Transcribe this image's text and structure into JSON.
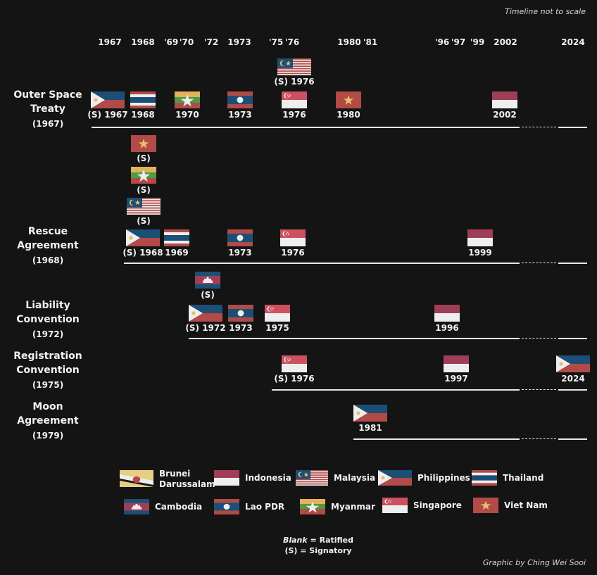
{
  "header_note": "Timeline not to scale",
  "credit": "Graphic by Ching Wei Sooi",
  "timeline_years": [
    "1967",
    "1968",
    "'69",
    "'70",
    "'72",
    "1973",
    "'75",
    "'76",
    "1980",
    "'81",
    "'96",
    "'97",
    "'99",
    "2002",
    "2024"
  ],
  "treaties": [
    {
      "name": "Outer Space Treaty",
      "year": "(1967)",
      "entries": [
        {
          "country": "Malaysia",
          "label": "(S) 1976"
        },
        {
          "country": "Philippines",
          "label": "(S) 1967"
        },
        {
          "country": "Thailand",
          "label": "1968"
        },
        {
          "country": "Myanmar",
          "label": "1970"
        },
        {
          "country": "Lao PDR",
          "label": "1973"
        },
        {
          "country": "Singapore",
          "label": "1976"
        },
        {
          "country": "Viet Nam",
          "label": "1980"
        },
        {
          "country": "Indonesia",
          "label": "2002"
        }
      ]
    },
    {
      "name": "Rescue Agreement",
      "year": "(1968)",
      "entries": [
        {
          "country": "Viet Nam",
          "label": "(S)"
        },
        {
          "country": "Myanmar",
          "label": "(S)"
        },
        {
          "country": "Malaysia",
          "label": "(S)"
        },
        {
          "country": "Philippines",
          "label": "(S) 1968"
        },
        {
          "country": "Thailand",
          "label": "1969"
        },
        {
          "country": "Lao PDR",
          "label": "1973"
        },
        {
          "country": "Singapore",
          "label": "1976"
        },
        {
          "country": "Indonesia",
          "label": "1999"
        }
      ]
    },
    {
      "name": "Liability Convention",
      "year": "(1972)",
      "entries": [
        {
          "country": "Cambodia",
          "label": "(S)"
        },
        {
          "country": "Philippines",
          "label": "(S) 1972"
        },
        {
          "country": "Lao PDR",
          "label": "1973"
        },
        {
          "country": "Singapore",
          "label": "1975"
        },
        {
          "country": "Indonesia",
          "label": "1996"
        }
      ]
    },
    {
      "name": "Registration Convention",
      "year": "(1975)",
      "entries": [
        {
          "country": "Singapore",
          "label": "(S) 1976"
        },
        {
          "country": "Indonesia",
          "label": "1997"
        },
        {
          "country": "Philippines",
          "label": "2024"
        }
      ]
    },
    {
      "name": "Moon Agreement",
      "year": "(1979)",
      "entries": [
        {
          "country": "Philippines",
          "label": "1981"
        }
      ]
    }
  ],
  "legend": [
    {
      "country": "Brunei Darussalam",
      "line1": "Brunei",
      "line2": "Darussalam"
    },
    {
      "country": "Indonesia",
      "line1": "Indonesia"
    },
    {
      "country": "Malaysia",
      "line1": "Malaysia"
    },
    {
      "country": "Philippines",
      "line1": "Philippines"
    },
    {
      "country": "Thailand",
      "line1": "Thailand"
    },
    {
      "country": "Cambodia",
      "line1": "Cambodia"
    },
    {
      "country": "Lao PDR",
      "line1": "Lao PDR"
    },
    {
      "country": "Myanmar",
      "line1": "Myanmar"
    },
    {
      "country": "Singapore",
      "line1": "Singapore"
    },
    {
      "country": "Viet Nam",
      "line1": "Viet Nam"
    }
  ],
  "key": {
    "blank_word": "Blank",
    "blank_meaning": " = Ratified",
    "signatory": "(S) = Signatory"
  },
  "colors": {
    "background": "#141414",
    "red": "#b24a47",
    "blue": "#1c4f76",
    "white": "#eeeeee",
    "gold": "#e6c069"
  }
}
